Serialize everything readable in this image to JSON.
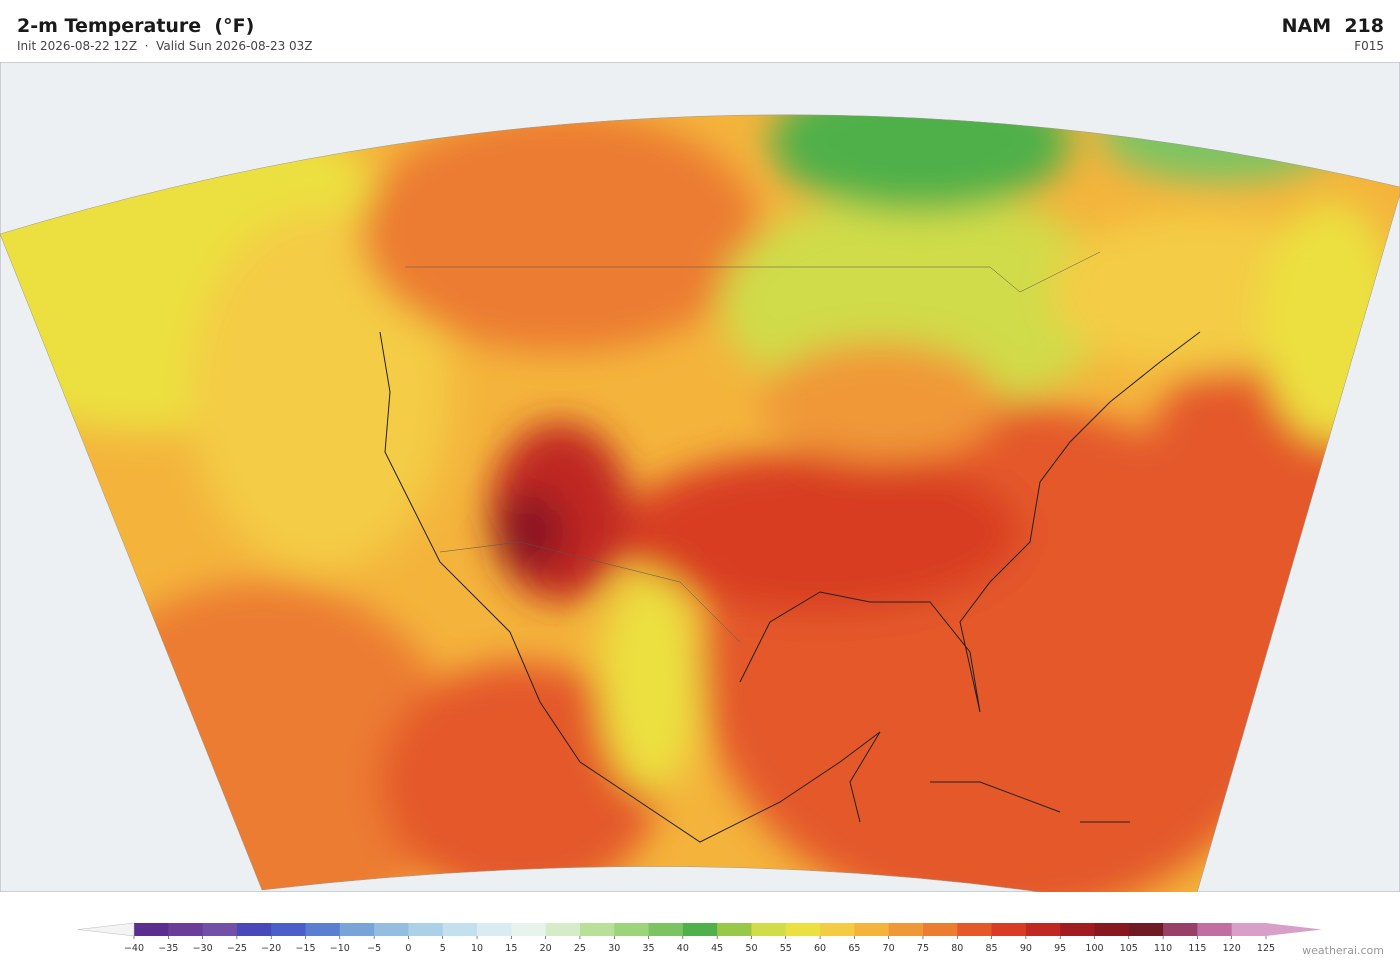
{
  "header": {
    "title": "2-m Temperature  (°F)",
    "subtitle": "Init 2026-08-22 12Z  ·  Valid Sun 2026-08-23 03Z",
    "model": "NAM  218",
    "forecast": "F015"
  },
  "colorbar": {
    "ticks": [
      {
        "value": -40,
        "label": "−40"
      },
      {
        "value": -35,
        "label": "−35"
      },
      {
        "value": -30,
        "label": "−30"
      },
      {
        "value": -25,
        "label": "−25"
      },
      {
        "value": -20,
        "label": "−20"
      },
      {
        "value": -15,
        "label": "−15"
      },
      {
        "value": -10,
        "label": "−10"
      },
      {
        "value": -5,
        "label": "−5"
      },
      0,
      5,
      10,
      15,
      20,
      25,
      30,
      35,
      40,
      45,
      50,
      55,
      60,
      65,
      70,
      75,
      80,
      85,
      90,
      95,
      100,
      105,
      110,
      115,
      120,
      125
    ],
    "colors": [
      "#5b2d8e",
      "#6a3d9a",
      "#7350a8",
      "#4848b8",
      "#4a5fc8",
      "#5b7fd0",
      "#7aa3d8",
      "#94bde0",
      "#acd0e8",
      "#c4e0ee",
      "#d8ecf2",
      "#e6f4ec",
      "#d4ecc8",
      "#b8e098",
      "#9cd47c",
      "#7cc463",
      "#50b04a",
      "#98c84a",
      "#d0dc48",
      "#ece040",
      "#f4cc44",
      "#f4b43c",
      "#f09838",
      "#ec7c30",
      "#e4582a",
      "#d83c24",
      "#c02822",
      "#a01c20",
      "#881820",
      "#701a24",
      "#984068",
      "#c070a0",
      "#d8a0c8"
    ],
    "under": "#f4f4f4",
    "over": "#d8a0c8"
  },
  "footer": {
    "credit": "weatherai.com"
  }
}
